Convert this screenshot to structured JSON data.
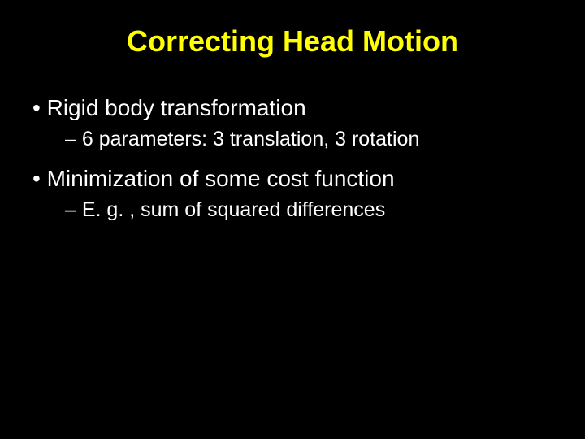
{
  "slide": {
    "title": "Correcting Head Motion",
    "bullets": [
      {
        "level": 1,
        "text": "Rigid body transformation"
      },
      {
        "level": 2,
        "text": "6 parameters: 3 translation, 3 rotation"
      },
      {
        "level": 1,
        "text": "Minimization of some cost function"
      },
      {
        "level": 2,
        "text": "E. g. , sum of squared differences"
      }
    ],
    "colors": {
      "background": "#000000",
      "title": "#ffff00",
      "body": "#ffffff"
    },
    "typography": {
      "title_fontsize": 36,
      "l1_fontsize": 28,
      "l2_fontsize": 25,
      "font_family": "Arial"
    }
  }
}
